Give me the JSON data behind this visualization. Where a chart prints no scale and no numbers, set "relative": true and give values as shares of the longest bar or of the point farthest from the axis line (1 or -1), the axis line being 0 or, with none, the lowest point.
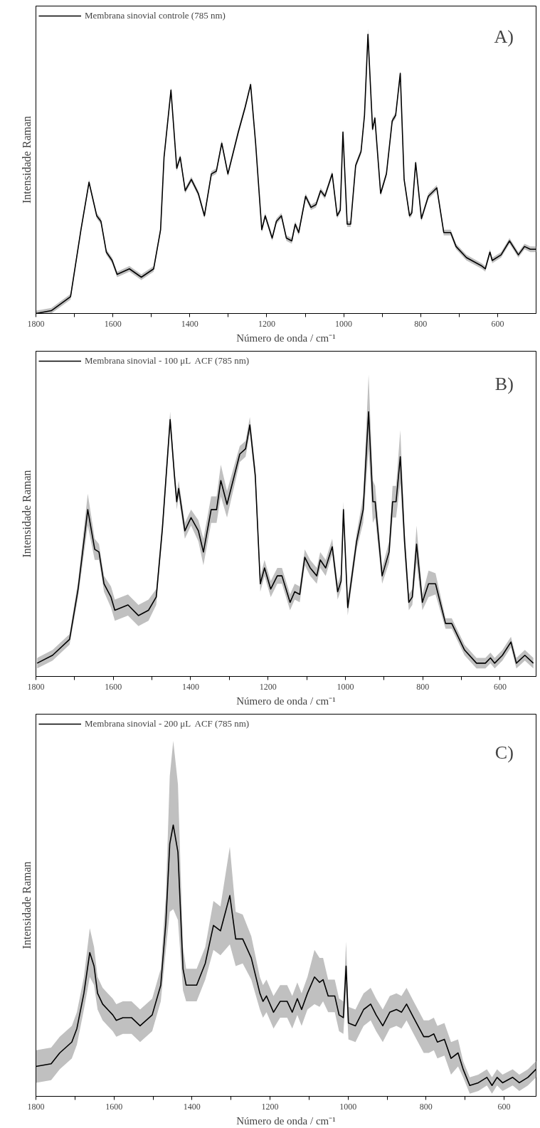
{
  "chart_data": [
    {
      "type": "line",
      "relative": true,
      "xlabel": "Número de onda / cm⁻¹",
      "ylabel": "Intensidade Raman",
      "annotations": [
        "A)"
      ],
      "legend": "top left",
      "grid": false,
      "xlim": [
        1800,
        500
      ],
      "xticks": [
        1800,
        {
          "value": 1700,
          "label": null
        },
        1600,
        {
          "value": 1500,
          "label": null
        },
        1400,
        {
          "value": 1300,
          "label": null
        },
        1200,
        {
          "value": 1100,
          "label": null
        },
        1000,
        {
          "value": 900,
          "label": null
        },
        800,
        {
          "value": 700,
          "label": null
        },
        600
      ],
      "x": [
        1800,
        1760,
        1710,
        1683,
        1662,
        1642,
        1631,
        1617,
        1602,
        1589,
        1557,
        1526,
        1494,
        1476,
        1467,
        1449,
        1434,
        1425,
        1412,
        1396,
        1378,
        1362,
        1344,
        1331,
        1317,
        1301,
        1274,
        1256,
        1242,
        1229,
        1213,
        1204,
        1186,
        1175,
        1162,
        1149,
        1135,
        1126,
        1117,
        1099,
        1085,
        1072,
        1060,
        1049,
        1030,
        1017,
        1009,
        1002,
        991,
        982,
        969,
        955,
        946,
        937,
        925,
        919,
        904,
        889,
        874,
        865,
        853,
        843,
        829,
        823,
        813,
        798,
        780,
        758,
        740,
        722,
        708,
        681,
        641,
        632,
        620,
        614,
        591,
        569,
        546,
        530,
        515,
        500
      ],
      "series": [
        {
          "name": "Membrana sinovial controle (785 nm)",
          "color": "#000000",
          "values": [
            0,
            0.01,
            0.06,
            0.3,
            0.47,
            0.35,
            0.33,
            0.22,
            0.19,
            0.14,
            0.16,
            0.13,
            0.16,
            0.3,
            0.56,
            0.8,
            0.52,
            0.56,
            0.44,
            0.48,
            0.43,
            0.35,
            0.5,
            0.51,
            0.61,
            0.5,
            0.65,
            0.74,
            0.82,
            0.61,
            0.3,
            0.35,
            0.27,
            0.33,
            0.35,
            0.27,
            0.26,
            0.32,
            0.29,
            0.42,
            0.38,
            0.39,
            0.44,
            0.42,
            0.5,
            0.35,
            0.37,
            0.65,
            0.32,
            0.32,
            0.53,
            0.58,
            0.71,
            1.0,
            0.66,
            0.7,
            0.43,
            0.5,
            0.69,
            0.71,
            0.86,
            0.48,
            0.35,
            0.36,
            0.54,
            0.34,
            0.42,
            0.45,
            0.29,
            0.29,
            0.24,
            0.2,
            0.17,
            0.16,
            0.22,
            0.19,
            0.21,
            0.26,
            0.21,
            0.24,
            0.23,
            0.23
          ],
          "lower": [
            0,
            0,
            0.05,
            0.29,
            0.46,
            0.34,
            0.32,
            0.21,
            0.18,
            0.13,
            0.15,
            0.12,
            0.15,
            0.29,
            0.55,
            0.79,
            0.51,
            0.55,
            0.43,
            0.47,
            0.42,
            0.34,
            0.49,
            0.5,
            0.6,
            0.49,
            0.64,
            0.73,
            0.81,
            0.6,
            0.29,
            0.34,
            0.26,
            0.32,
            0.34,
            0.26,
            0.25,
            0.31,
            0.28,
            0.41,
            0.37,
            0.38,
            0.43,
            0.41,
            0.49,
            0.34,
            0.36,
            0.64,
            0.31,
            0.31,
            0.52,
            0.57,
            0.7,
            0.99,
            0.65,
            0.69,
            0.42,
            0.49,
            0.68,
            0.7,
            0.85,
            0.47,
            0.34,
            0.35,
            0.53,
            0.33,
            0.41,
            0.44,
            0.28,
            0.28,
            0.23,
            0.19,
            0.16,
            0.15,
            0.21,
            0.18,
            0.2,
            0.25,
            0.2,
            0.23,
            0.22,
            0.22
          ],
          "upper": [
            0.01,
            0.02,
            0.07,
            0.31,
            0.48,
            0.36,
            0.34,
            0.23,
            0.2,
            0.15,
            0.17,
            0.14,
            0.17,
            0.31,
            0.57,
            0.81,
            0.53,
            0.57,
            0.45,
            0.49,
            0.44,
            0.36,
            0.51,
            0.52,
            0.62,
            0.51,
            0.66,
            0.75,
            0.83,
            0.62,
            0.31,
            0.36,
            0.28,
            0.34,
            0.36,
            0.28,
            0.27,
            0.33,
            0.3,
            0.43,
            0.39,
            0.4,
            0.45,
            0.43,
            0.51,
            0.36,
            0.38,
            0.66,
            0.33,
            0.33,
            0.54,
            0.59,
            0.72,
            1.02,
            0.67,
            0.71,
            0.44,
            0.51,
            0.7,
            0.72,
            0.87,
            0.49,
            0.36,
            0.37,
            0.55,
            0.35,
            0.43,
            0.46,
            0.3,
            0.3,
            0.25,
            0.21,
            0.18,
            0.17,
            0.23,
            0.2,
            0.22,
            0.27,
            0.22,
            0.25,
            0.24,
            0.24
          ]
        }
      ]
    },
    {
      "type": "line",
      "relative": true,
      "xlabel": "Número de onda / cm⁻¹",
      "ylabel": "Intensidade Raman",
      "annotations": [
        "B)"
      ],
      "legend": "top left",
      "grid": false,
      "xlim": [
        1800,
        507
      ],
      "xticks": [
        1800,
        {
          "value": 1700,
          "label": null
        },
        1600,
        {
          "value": 1500,
          "label": null
        },
        1400,
        {
          "value": 1300,
          "label": null
        },
        1200,
        {
          "value": 1100,
          "label": null
        },
        1000,
        {
          "value": 900,
          "label": null
        },
        800,
        {
          "value": 700,
          "label": null
        },
        600
      ],
      "x": [
        1797,
        1757,
        1713,
        1691,
        1666,
        1648,
        1637,
        1624,
        1606,
        1596,
        1562,
        1535,
        1509,
        1489,
        1473,
        1453,
        1442,
        1436,
        1431,
        1415,
        1399,
        1380,
        1367,
        1347,
        1333,
        1322,
        1306,
        1273,
        1258,
        1247,
        1233,
        1220,
        1209,
        1193,
        1176,
        1164,
        1143,
        1131,
        1118,
        1105,
        1091,
        1074,
        1065,
        1051,
        1034,
        1020,
        1011,
        1005,
        994,
        971,
        954,
        940,
        929,
        923,
        905,
        887,
        878,
        869,
        858,
        847,
        836,
        827,
        816,
        801,
        785,
        767,
        741,
        725,
        692,
        661,
        638,
        625,
        614,
        594,
        572,
        558,
        536,
        514
      ],
      "series": [
        {
          "name": "Membrana sinovial - 100 μL  ACF (785 nm)",
          "color": "#000000",
          "values": [
            0.05,
            0.08,
            0.14,
            0.33,
            0.63,
            0.48,
            0.47,
            0.35,
            0.3,
            0.25,
            0.27,
            0.23,
            0.25,
            0.3,
            0.56,
            0.97,
            0.76,
            0.66,
            0.71,
            0.55,
            0.6,
            0.55,
            0.47,
            0.63,
            0.63,
            0.74,
            0.65,
            0.84,
            0.86,
            0.95,
            0.76,
            0.35,
            0.41,
            0.33,
            0.38,
            0.38,
            0.28,
            0.32,
            0.31,
            0.45,
            0.41,
            0.38,
            0.44,
            0.41,
            0.49,
            0.32,
            0.36,
            0.63,
            0.26,
            0.51,
            0.63,
            1.0,
            0.66,
            0.66,
            0.38,
            0.47,
            0.66,
            0.66,
            0.83,
            0.51,
            0.28,
            0.3,
            0.5,
            0.28,
            0.35,
            0.35,
            0.2,
            0.2,
            0.1,
            0.05,
            0.05,
            0.07,
            0.05,
            0.08,
            0.13,
            0.05,
            0.08,
            0.05
          ],
          "lower": [
            0.03,
            0.06,
            0.12,
            0.3,
            0.57,
            0.44,
            0.44,
            0.32,
            0.26,
            0.21,
            0.23,
            0.19,
            0.21,
            0.27,
            0.53,
            0.94,
            0.73,
            0.63,
            0.68,
            0.52,
            0.57,
            0.51,
            0.42,
            0.58,
            0.58,
            0.68,
            0.6,
            0.81,
            0.83,
            0.92,
            0.73,
            0.32,
            0.38,
            0.3,
            0.35,
            0.35,
            0.25,
            0.29,
            0.28,
            0.42,
            0.38,
            0.35,
            0.41,
            0.38,
            0.46,
            0.29,
            0.33,
            0.6,
            0.23,
            0.48,
            0.58,
            0.86,
            0.58,
            0.6,
            0.35,
            0.43,
            0.6,
            0.6,
            0.73,
            0.46,
            0.25,
            0.27,
            0.43,
            0.25,
            0.3,
            0.31,
            0.18,
            0.18,
            0.08,
            0.03,
            0.03,
            0.05,
            0.03,
            0.06,
            0.11,
            0.03,
            0.06,
            0.03
          ],
          "upper": [
            0.07,
            0.1,
            0.16,
            0.36,
            0.69,
            0.52,
            0.5,
            0.38,
            0.34,
            0.29,
            0.31,
            0.27,
            0.29,
            0.33,
            0.59,
            1.0,
            0.79,
            0.69,
            0.74,
            0.58,
            0.63,
            0.59,
            0.52,
            0.68,
            0.68,
            0.8,
            0.7,
            0.87,
            0.89,
            0.98,
            0.79,
            0.38,
            0.44,
            0.36,
            0.41,
            0.41,
            0.31,
            0.35,
            0.34,
            0.48,
            0.44,
            0.41,
            0.47,
            0.44,
            0.52,
            0.35,
            0.39,
            0.66,
            0.29,
            0.54,
            0.68,
            1.14,
            0.74,
            0.72,
            0.41,
            0.51,
            0.72,
            0.72,
            0.93,
            0.56,
            0.31,
            0.33,
            0.57,
            0.31,
            0.4,
            0.39,
            0.22,
            0.22,
            0.12,
            0.07,
            0.07,
            0.09,
            0.07,
            0.1,
            0.15,
            0.07,
            0.1,
            0.07
          ]
        }
      ]
    },
    {
      "type": "line",
      "relative": true,
      "xlabel": "Número de onda / cm⁻¹",
      "ylabel": "Intensidade Raman",
      "annotations": [
        "C)"
      ],
      "legend": "top left",
      "grid": false,
      "xlim": [
        1800,
        518
      ],
      "xticks": [
        1800,
        {
          "value": 1700,
          "label": null
        },
        1600,
        {
          "value": 1500,
          "label": null
        },
        1400,
        {
          "value": 1300,
          "label": null
        },
        1200,
        {
          "value": 1100,
          "label": null
        },
        1000,
        {
          "value": 900,
          "label": null
        },
        800,
        {
          "value": 700,
          "label": null
        },
        600
      ],
      "x": [
        1800,
        1761,
        1739,
        1708,
        1695,
        1677,
        1662,
        1651,
        1642,
        1629,
        1616,
        1603,
        1594,
        1577,
        1555,
        1533,
        1502,
        1480,
        1467,
        1457,
        1448,
        1436,
        1423,
        1415,
        1388,
        1366,
        1345,
        1327,
        1303,
        1288,
        1270,
        1248,
        1226,
        1218,
        1209,
        1191,
        1174,
        1156,
        1143,
        1130,
        1119,
        1104,
        1086,
        1073,
        1064,
        1051,
        1034,
        1023,
        1012,
        1005,
        999,
        981,
        960,
        942,
        928,
        911,
        893,
        876,
        863,
        850,
        832,
        806,
        793,
        780,
        771,
        753,
        736,
        718,
        705,
        688,
        666,
        644,
        631,
        618,
        604,
        578,
        561,
        539,
        518
      ],
      "series": [
        {
          "name": "Membrana sinovial - 200 μL  ACF (785 nm)",
          "color": "#000000",
          "values": [
            0.11,
            0.12,
            0.16,
            0.2,
            0.25,
            0.38,
            0.53,
            0.48,
            0.38,
            0.34,
            0.32,
            0.3,
            0.28,
            0.29,
            0.29,
            0.26,
            0.3,
            0.41,
            0.64,
            0.93,
            1.0,
            0.9,
            0.47,
            0.41,
            0.41,
            0.49,
            0.63,
            0.61,
            0.74,
            0.58,
            0.58,
            0.51,
            0.38,
            0.35,
            0.37,
            0.31,
            0.35,
            0.35,
            0.31,
            0.36,
            0.32,
            0.38,
            0.44,
            0.42,
            0.43,
            0.37,
            0.37,
            0.3,
            0.29,
            0.48,
            0.27,
            0.26,
            0.32,
            0.34,
            0.3,
            0.26,
            0.31,
            0.32,
            0.31,
            0.34,
            0.29,
            0.22,
            0.22,
            0.23,
            0.2,
            0.21,
            0.14,
            0.16,
            0.1,
            0.04,
            0.05,
            0.07,
            0.04,
            0.07,
            0.05,
            0.07,
            0.05,
            0.07,
            0.1
          ],
          "lower": [
            0.05,
            0.06,
            0.1,
            0.14,
            0.19,
            0.32,
            0.44,
            0.41,
            0.32,
            0.28,
            0.26,
            0.24,
            0.22,
            0.23,
            0.23,
            0.2,
            0.24,
            0.35,
            0.54,
            0.68,
            0.69,
            0.65,
            0.39,
            0.35,
            0.35,
            0.43,
            0.54,
            0.52,
            0.56,
            0.48,
            0.49,
            0.43,
            0.32,
            0.29,
            0.31,
            0.25,
            0.29,
            0.29,
            0.25,
            0.3,
            0.26,
            0.32,
            0.34,
            0.33,
            0.35,
            0.31,
            0.31,
            0.24,
            0.23,
            0.39,
            0.21,
            0.2,
            0.26,
            0.28,
            0.24,
            0.2,
            0.25,
            0.26,
            0.25,
            0.28,
            0.23,
            0.16,
            0.16,
            0.17,
            0.14,
            0.15,
            0.08,
            0.11,
            0.07,
            0.01,
            0.02,
            0.04,
            0.01,
            0.04,
            0.02,
            0.04,
            0.02,
            0.04,
            0.07
          ],
          "upper": [
            0.17,
            0.18,
            0.22,
            0.26,
            0.31,
            0.44,
            0.62,
            0.55,
            0.44,
            0.4,
            0.38,
            0.36,
            0.34,
            0.35,
            0.35,
            0.32,
            0.36,
            0.47,
            0.74,
            1.18,
            1.31,
            1.15,
            0.55,
            0.47,
            0.47,
            0.55,
            0.72,
            0.7,
            0.92,
            0.68,
            0.67,
            0.59,
            0.44,
            0.41,
            0.43,
            0.37,
            0.41,
            0.41,
            0.37,
            0.42,
            0.38,
            0.44,
            0.54,
            0.51,
            0.51,
            0.43,
            0.43,
            0.36,
            0.35,
            0.57,
            0.33,
            0.32,
            0.38,
            0.4,
            0.36,
            0.32,
            0.37,
            0.38,
            0.37,
            0.4,
            0.35,
            0.28,
            0.28,
            0.29,
            0.26,
            0.27,
            0.2,
            0.21,
            0.13,
            0.07,
            0.08,
            0.1,
            0.07,
            0.1,
            0.08,
            0.1,
            0.08,
            0.1,
            0.13
          ]
        }
      ]
    }
  ]
}
